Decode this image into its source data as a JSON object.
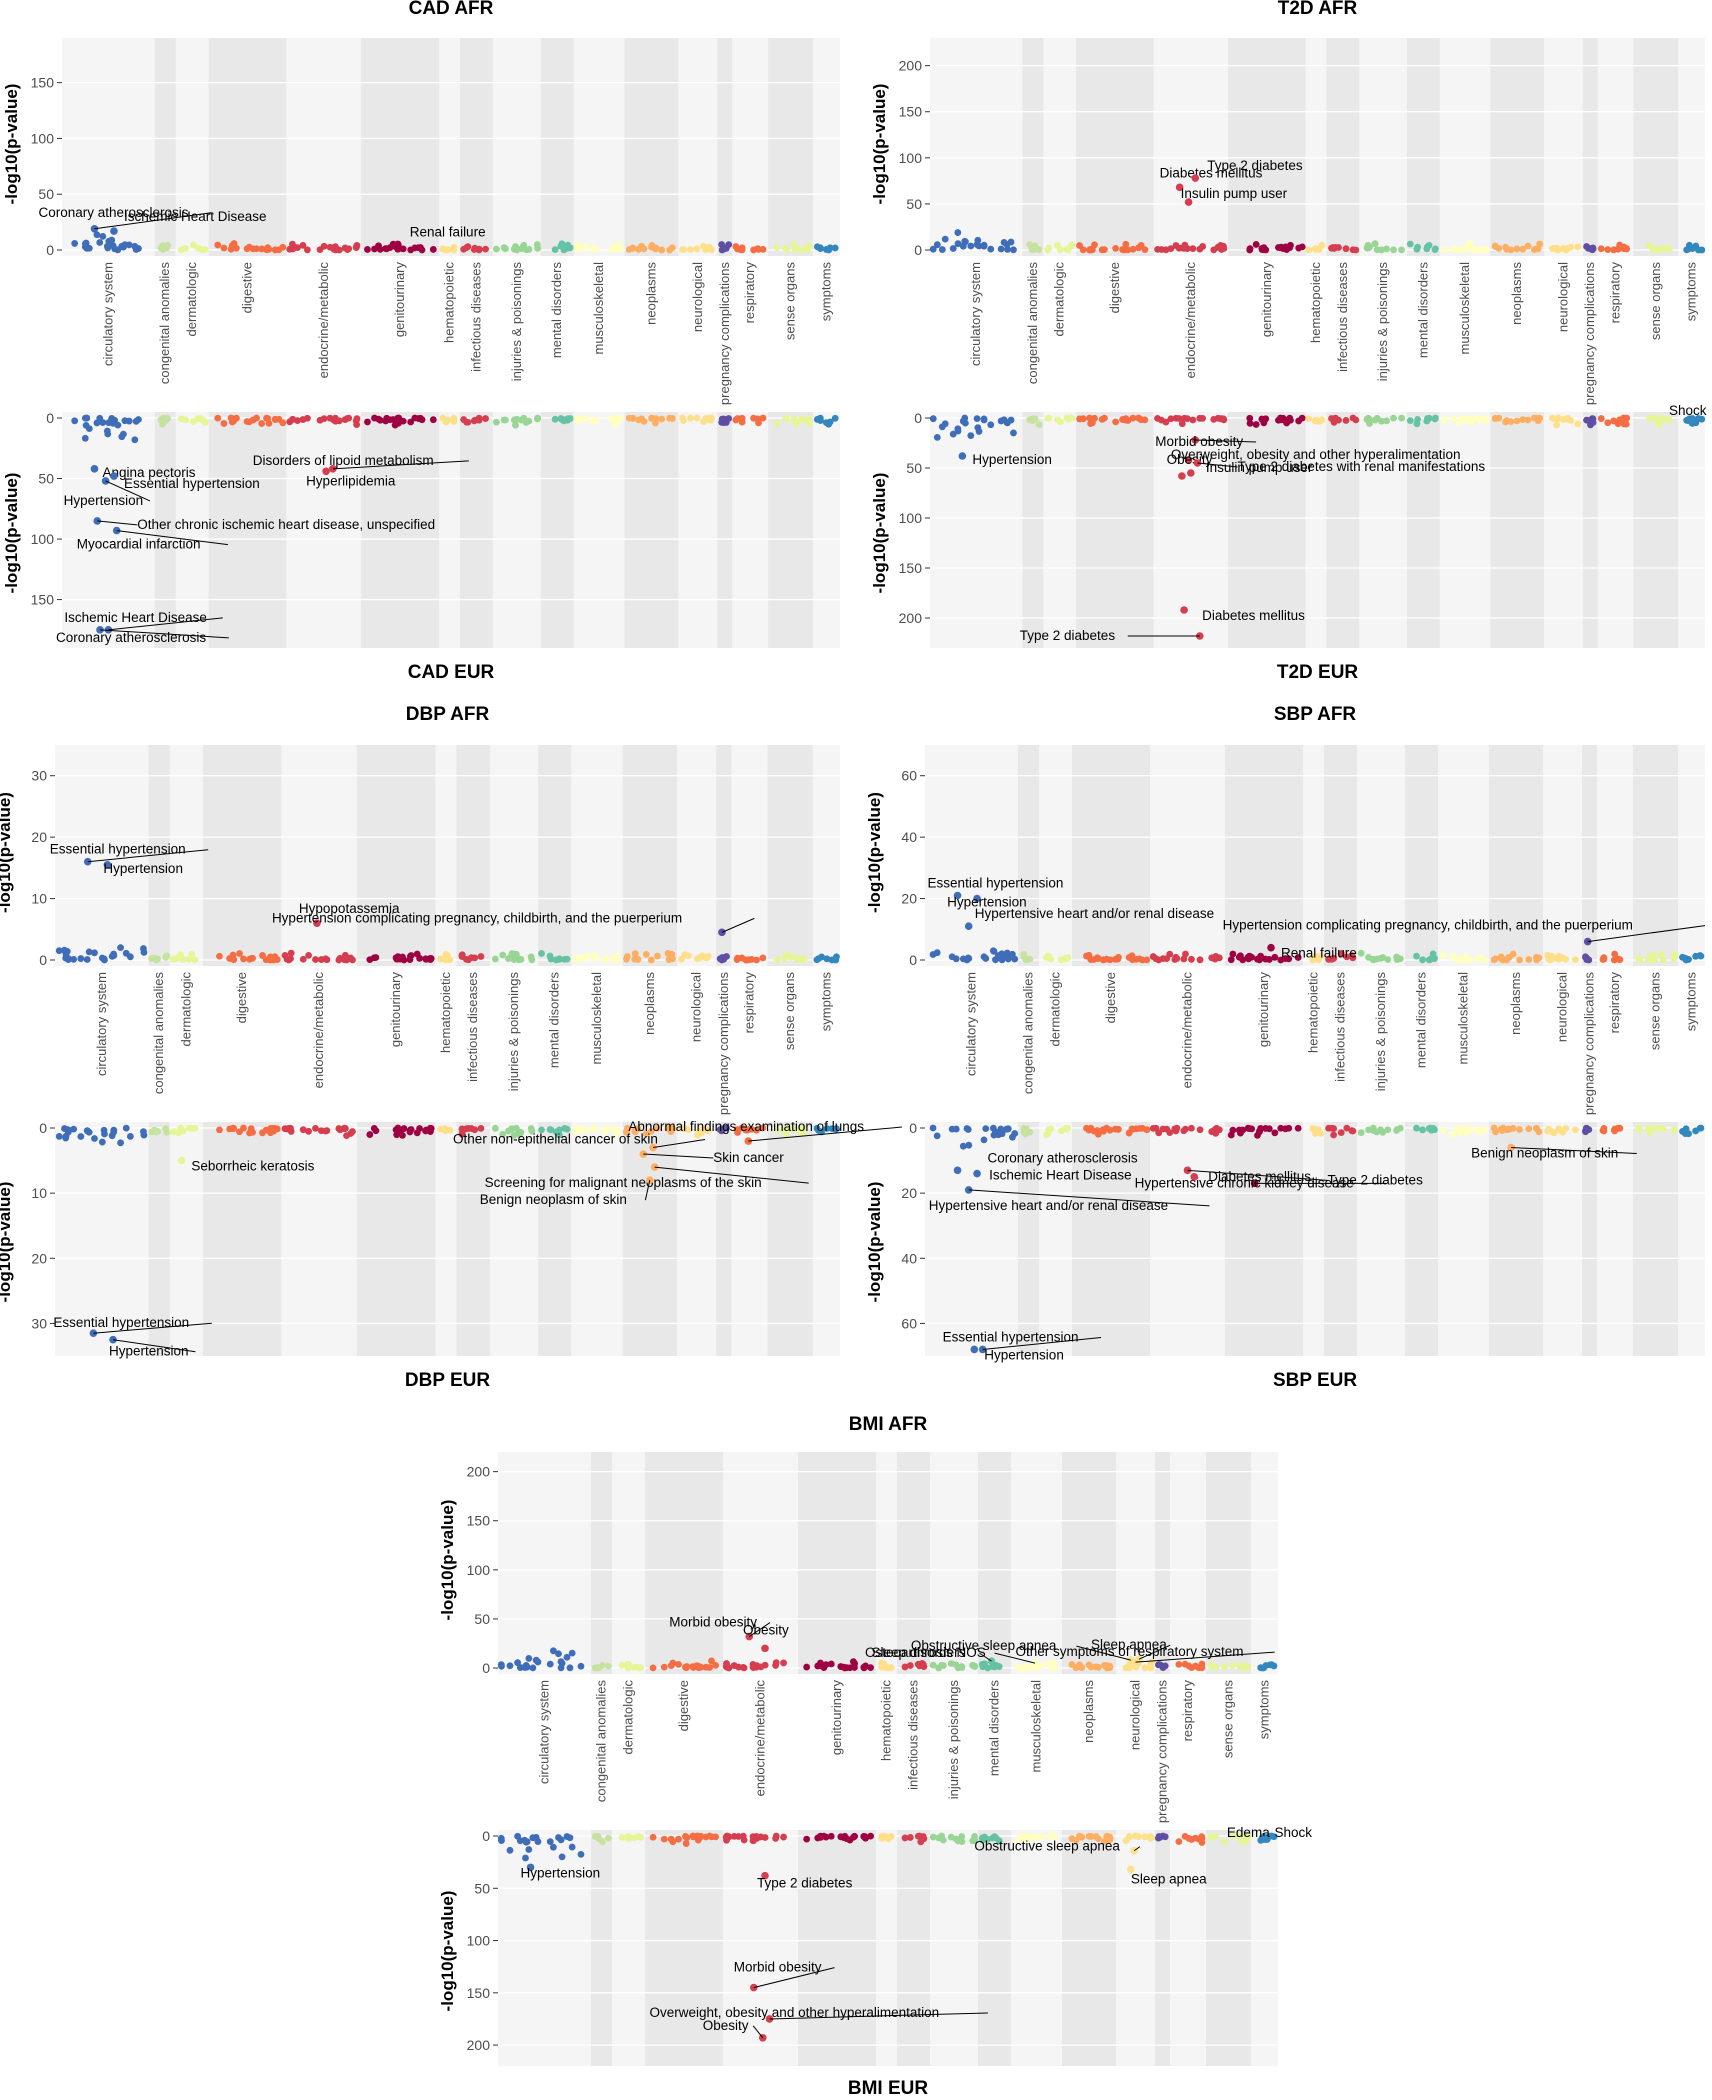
{
  "figure": {
    "y_axis_label": "-log10(p-value)",
    "categories": [
      "circulatory system",
      "congenital anomalies",
      "dermatologic",
      "digestive",
      "endocrine/metabolic",
      "genitourinary",
      "hematopoietic",
      "infectious diseases",
      "injuries & poisonings",
      "mental disorders",
      "musculoskeletal",
      "neoplasms",
      "neurological",
      "pregnancy complications",
      "respiratory",
      "sense organs",
      "symptoms"
    ],
    "category_colors": [
      "#3F6DB8",
      "#C6E2A0",
      "#E6F598",
      "#F46D43",
      "#D53E4F",
      "#9E0142",
      "#FEE08B",
      "#D53E4F",
      "#99D594",
      "#66C2A5",
      "#FFFFBF",
      "#FDAE61",
      "#FEE08B",
      "#5E4FA2",
      "#F46D43",
      "#E6F598",
      "#3288BD"
    ]
  },
  "chart_data": [
    {
      "type": "scatter",
      "panel": "CAD",
      "title_top": "CAD AFR",
      "title_bottom": "CAD EUR",
      "ylabel": "-log10(p-value)",
      "ylim_top": [
        0,
        190
      ],
      "ylim_bottom": [
        0,
        190
      ],
      "yticks_top": [
        0,
        50,
        100,
        150
      ],
      "yticks_bottom": [
        0,
        50,
        100,
        150
      ],
      "top_points": [
        {
          "category": "circulatory system",
          "value": 19,
          "label": "Coronary atherosclerosis"
        },
        {
          "category": "circulatory system",
          "value": 17,
          "label": "Ischemic Heart Disease"
        },
        {
          "category": "genitourinary",
          "value": 5,
          "label": "Renal failure"
        }
      ],
      "bottom_points": [
        {
          "category": "circulatory system",
          "value": 42,
          "label": "Angina pectoris"
        },
        {
          "category": "circulatory system",
          "value": 48,
          "label": "Essential hypertension"
        },
        {
          "category": "circulatory system",
          "value": 52,
          "label": "Hypertension"
        },
        {
          "category": "circulatory system",
          "value": 85,
          "label": "Other chronic ischemic heart disease, unspecified"
        },
        {
          "category": "circulatory system",
          "value": 93,
          "label": "Myocardial infarction"
        },
        {
          "category": "circulatory system",
          "value": 175,
          "label": "Ischemic Heart Disease"
        },
        {
          "category": "circulatory system",
          "value": 175,
          "label": "Coronary atherosclerosis"
        },
        {
          "category": "endocrine/metabolic",
          "value": 42,
          "label": "Disorders of lipoid metabolism"
        },
        {
          "category": "endocrine/metabolic",
          "value": 44,
          "label": "Hyperlipidemia"
        }
      ]
    },
    {
      "type": "scatter",
      "panel": "T2D",
      "title_top": "T2D AFR",
      "title_bottom": "T2D EUR",
      "ylabel": "-log10(p-value)",
      "ylim_top": [
        0,
        230
      ],
      "ylim_bottom": [
        0,
        230
      ],
      "yticks_top": [
        0,
        50,
        100,
        150,
        200
      ],
      "yticks_bottom": [
        0,
        50,
        100,
        150,
        200
      ],
      "top_points": [
        {
          "category": "endocrine/metabolic",
          "value": 68,
          "label": "Diabetes mellitus"
        },
        {
          "category": "endocrine/metabolic",
          "value": 78,
          "label": "Type 2 diabetes"
        },
        {
          "category": "endocrine/metabolic",
          "value": 52,
          "label": "Insulin pump user"
        }
      ],
      "bottom_points": [
        {
          "category": "circulatory system",
          "value": 38,
          "label": "Hypertension"
        },
        {
          "category": "endocrine/metabolic",
          "value": 22,
          "label": "Morbid obesity"
        },
        {
          "category": "endocrine/metabolic",
          "value": 42,
          "label": "Obesity"
        },
        {
          "category": "endocrine/metabolic",
          "value": 58,
          "label": "Insulin pump user"
        },
        {
          "category": "endocrine/metabolic",
          "value": 45,
          "label": "Type 2 diabetes with renal manifestations"
        },
        {
          "category": "endocrine/metabolic",
          "value": 55,
          "label": "Overweight, obesity and other hyperalimentation"
        },
        {
          "category": "endocrine/metabolic",
          "value": 192,
          "label": "Diabetes mellitus"
        },
        {
          "category": "endocrine/metabolic",
          "value": 218,
          "label": "Type 2 diabetes"
        },
        {
          "category": "symptoms",
          "value": 5,
          "label": "Shock"
        }
      ]
    },
    {
      "type": "scatter",
      "panel": "DBP",
      "title_top": "DBP AFR",
      "title_bottom": "DBP EUR",
      "ylabel": "-log10(p-value)",
      "ylim_top": [
        0,
        35
      ],
      "ylim_bottom": [
        0,
        35
      ],
      "yticks_top": [
        0,
        10,
        20,
        30
      ],
      "yticks_bottom": [
        0,
        10,
        20,
        30
      ],
      "top_points": [
        {
          "category": "circulatory system",
          "value": 16,
          "label": "Essential hypertension"
        },
        {
          "category": "circulatory system",
          "value": 15.5,
          "label": "Hypertension"
        },
        {
          "category": "endocrine/metabolic",
          "value": 6,
          "label": "Hypopotassemia"
        },
        {
          "category": "pregnancy complications",
          "value": 4.5,
          "label": "Hypertension complicating pregnancy, childbirth, and the puerperium"
        }
      ],
      "bottom_points": [
        {
          "category": "dermatologic",
          "value": 5,
          "label": "Seborrheic keratosis"
        },
        {
          "category": "neoplasms",
          "value": 3,
          "label": "Other non-epithelial cancer of skin"
        },
        {
          "category": "respiratory",
          "value": 2,
          "label": "Abnormal findings examination of lungs"
        },
        {
          "category": "neoplasms",
          "value": 4,
          "label": "Skin cancer"
        },
        {
          "category": "neoplasms",
          "value": 6,
          "label": "Screening for malignant neoplasms of the skin"
        },
        {
          "category": "neoplasms",
          "value": 8,
          "label": "Benign neoplasm of skin"
        },
        {
          "category": "circulatory system",
          "value": 31.5,
          "label": "Essential hypertension"
        },
        {
          "category": "circulatory system",
          "value": 32.5,
          "label": "Hypertension"
        }
      ]
    },
    {
      "type": "scatter",
      "panel": "SBP",
      "title_top": "SBP AFR",
      "title_bottom": "SBP EUR",
      "ylabel": "-log10(p-value)",
      "ylim_top": [
        0,
        70
      ],
      "ylim_bottom": [
        0,
        70
      ],
      "yticks_top": [
        0,
        20,
        40,
        60
      ],
      "yticks_bottom": [
        0,
        20,
        40,
        60
      ],
      "top_points": [
        {
          "category": "circulatory system",
          "value": 21,
          "label": "Essential hypertension"
        },
        {
          "category": "circulatory system",
          "value": 20,
          "label": "Hypertension"
        },
        {
          "category": "circulatory system",
          "value": 11,
          "label": "Hypertensive heart and/or renal disease"
        },
        {
          "category": "pregnancy complications",
          "value": 6,
          "label": "Hypertension complicating pregnancy, childbirth, and the puerperium"
        },
        {
          "category": "genitourinary",
          "value": 4,
          "label": "Renal failure"
        }
      ],
      "bottom_points": [
        {
          "category": "circulatory system",
          "value": 13,
          "label": "Coronary atherosclerosis"
        },
        {
          "category": "circulatory system",
          "value": 14,
          "label": "Ischemic Heart Disease"
        },
        {
          "category": "circulatory system",
          "value": 19,
          "label": "Hypertensive heart and/or renal disease"
        },
        {
          "category": "genitourinary",
          "value": 17,
          "label": "Hypertensive chronic kidney disease"
        },
        {
          "category": "endocrine/metabolic",
          "value": 15,
          "label": "Diabetes mellitus"
        },
        {
          "category": "endocrine/metabolic",
          "value": 13,
          "label": "Type 2 diabetes"
        },
        {
          "category": "neoplasms",
          "value": 6,
          "label": "Benign neoplasm of skin"
        },
        {
          "category": "circulatory system",
          "value": 68,
          "label": "Essential hypertension"
        },
        {
          "category": "circulatory system",
          "value": 68,
          "label": "Hypertension"
        }
      ]
    },
    {
      "type": "scatter",
      "panel": "BMI",
      "title_top": "BMI AFR",
      "title_bottom": "BMI EUR",
      "ylabel": "-log10(p-value)",
      "ylim_top": [
        0,
        220
      ],
      "ylim_bottom": [
        0,
        220
      ],
      "yticks_top": [
        0,
        50,
        100,
        150,
        200
      ],
      "yticks_bottom": [
        0,
        50,
        100,
        150,
        200
      ],
      "top_points": [
        {
          "category": "endocrine/metabolic",
          "value": 32,
          "label": "Morbid obesity"
        },
        {
          "category": "endocrine/metabolic",
          "value": 20,
          "label": "Obesity"
        },
        {
          "category": "musculoskeletal",
          "value": 5,
          "label": "Osteoarthrosis NOS"
        },
        {
          "category": "neurological",
          "value": 8,
          "label": "Obstructive sleep apnea"
        },
        {
          "category": "neurological",
          "value": 9,
          "label": "Sleep apnea"
        },
        {
          "category": "neurological",
          "value": 6,
          "label": "Other symptoms of respiratory system"
        },
        {
          "category": "mental disorders",
          "value": 7,
          "label": "Sleep disorders"
        }
      ],
      "bottom_points": [
        {
          "category": "circulatory system",
          "value": 30,
          "label": "Hypertension"
        },
        {
          "category": "endocrine/metabolic",
          "value": 38,
          "label": "Type 2 diabetes"
        },
        {
          "category": "neurological",
          "value": 14,
          "label": "Obstructive sleep apnea"
        },
        {
          "category": "neurological",
          "value": 32,
          "label": "Sleep apnea"
        },
        {
          "category": "symptoms",
          "value": 3,
          "label": "Edema"
        },
        {
          "category": "symptoms",
          "value": 3,
          "label": "Shock"
        },
        {
          "category": "endocrine/metabolic",
          "value": 145,
          "label": "Morbid obesity"
        },
        {
          "category": "endocrine/metabolic",
          "value": 175,
          "label": "Overweight, obesity and other hyperalimentation"
        },
        {
          "category": "endocrine/metabolic",
          "value": 193,
          "label": "Obesity"
        }
      ]
    }
  ]
}
